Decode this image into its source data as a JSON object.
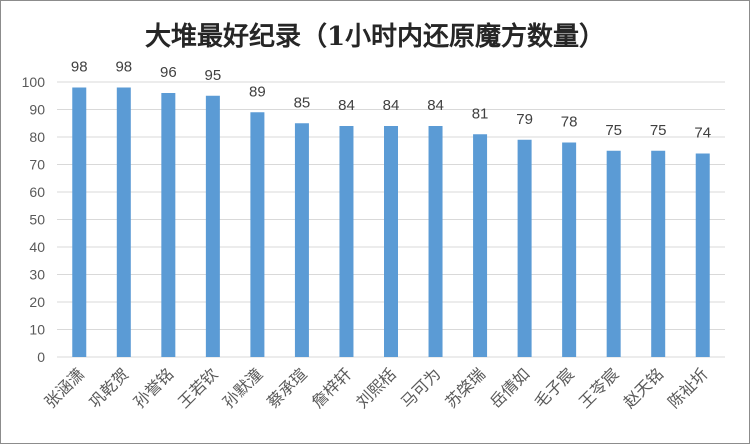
{
  "chart_data": {
    "type": "bar",
    "title": "大堆最好纪录（1小时内还原魔方数量）",
    "xlabel": "",
    "ylabel": "",
    "ylim": [
      0,
      100
    ],
    "yticks": [
      0,
      10,
      20,
      30,
      40,
      50,
      60,
      70,
      80,
      90,
      100
    ],
    "grid": true,
    "legend": "none",
    "bar_color": "#5b9bd5",
    "categories": [
      "张涵潇",
      "巩乾贺",
      "孙誉铭",
      "王若钦",
      "孙默潼",
      "蔡承瑄",
      "詹梓轩",
      "刘熙栝",
      "马可为",
      "苏棨瑞",
      "岳倩如",
      "毛子宸",
      "王苓宸",
      "赵天铭",
      "陈祉圻"
    ],
    "values": [
      98,
      98,
      96,
      95,
      89,
      85,
      84,
      84,
      84,
      81,
      79,
      78,
      75,
      75,
      74
    ]
  }
}
